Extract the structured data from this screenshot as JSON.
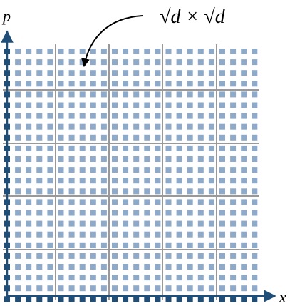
{
  "axes": {
    "y_label": "p",
    "x_label": "x"
  },
  "annotation": "√d × √d"
}
